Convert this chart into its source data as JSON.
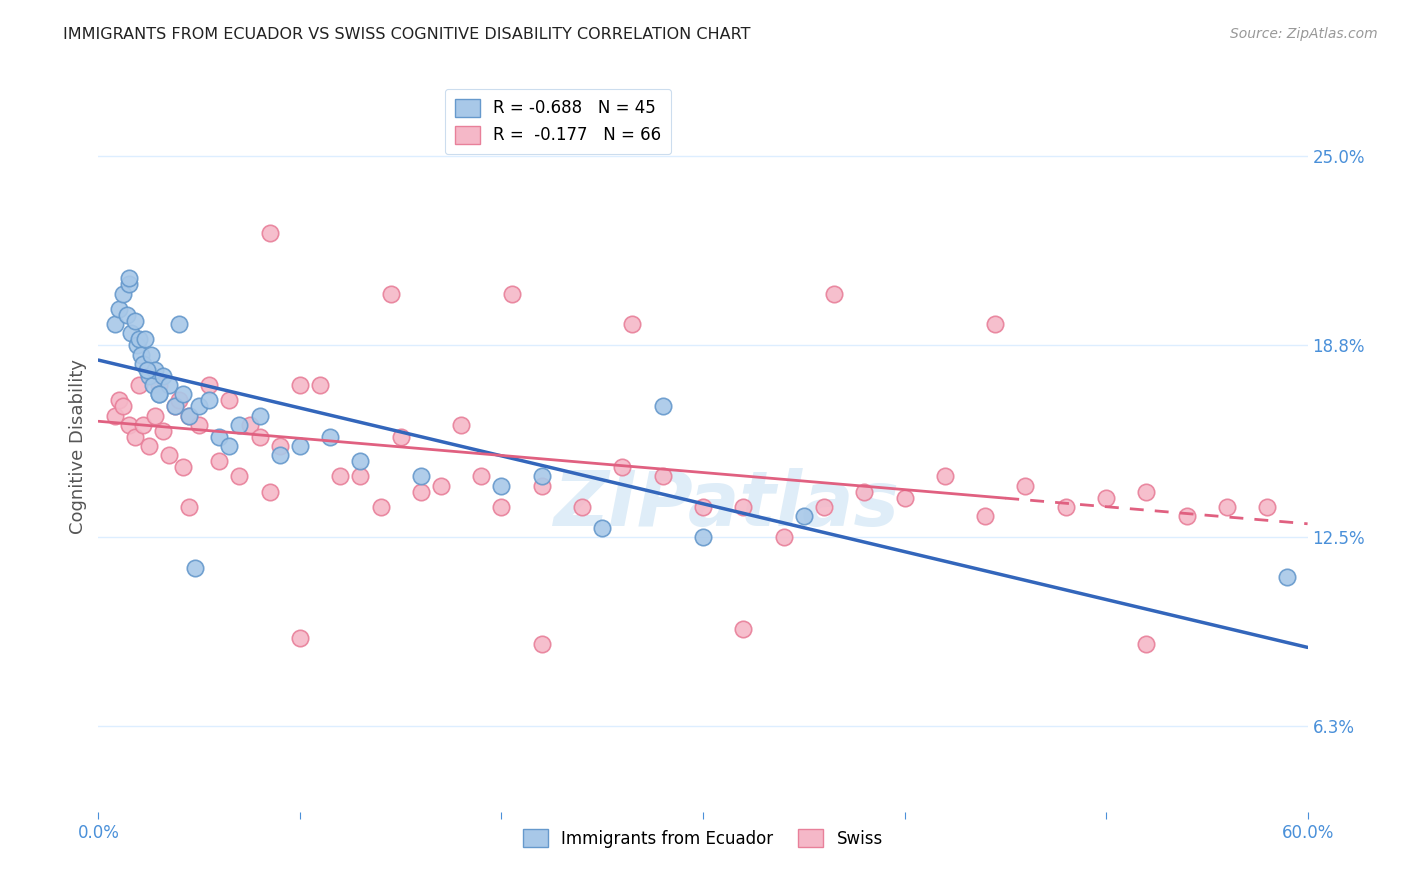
{
  "title": "IMMIGRANTS FROM ECUADOR VS SWISS COGNITIVE DISABILITY CORRELATION CHART",
  "source": "Source: ZipAtlas.com",
  "ylabel": "Cognitive Disability",
  "ytick_values": [
    6.3,
    12.5,
    18.8,
    25.0
  ],
  "xlim": [
    0.0,
    60.0
  ],
  "ylim": [
    3.5,
    27.5
  ],
  "series1_name": "Immigrants from Ecuador",
  "series2_name": "Swiss",
  "series1_color": "#a8c8e8",
  "series2_color": "#f5b8c8",
  "series1_edge": "#6699cc",
  "series2_edge": "#e8809a",
  "series1_line_color": "#3366bb",
  "series2_line_color": "#e06080",
  "background_color": "#ffffff",
  "grid_color": "#ddeeff",
  "title_color": "#222222",
  "axis_label_color": "#4a90d9",
  "watermark": "ZIPatlas",
  "series1_R": -0.688,
  "series1_N": 45,
  "series2_R": -0.177,
  "series2_N": 66,
  "series1_x": [
    0.8,
    1.0,
    1.2,
    1.4,
    1.5,
    1.6,
    1.8,
    1.9,
    2.0,
    2.1,
    2.2,
    2.3,
    2.5,
    2.6,
    2.7,
    2.8,
    3.0,
    3.2,
    3.5,
    3.8,
    4.0,
    4.2,
    4.5,
    5.0,
    5.5,
    6.0,
    6.5,
    7.0,
    8.0,
    9.0,
    10.0,
    11.5,
    13.0,
    16.0,
    20.0,
    22.0,
    25.0,
    28.0,
    30.0,
    35.0,
    59.0,
    3.0,
    1.5,
    2.4,
    4.8
  ],
  "series1_y": [
    19.5,
    20.0,
    20.5,
    19.8,
    20.8,
    19.2,
    19.6,
    18.8,
    19.0,
    18.5,
    18.2,
    19.0,
    17.8,
    18.5,
    17.5,
    18.0,
    17.2,
    17.8,
    17.5,
    16.8,
    19.5,
    17.2,
    16.5,
    16.8,
    17.0,
    15.8,
    15.5,
    16.2,
    16.5,
    15.2,
    15.5,
    15.8,
    15.0,
    14.5,
    14.2,
    14.5,
    12.8,
    16.8,
    12.5,
    13.2,
    11.2,
    17.2,
    21.0,
    18.0,
    11.5
  ],
  "series2_x": [
    0.8,
    1.0,
    1.2,
    1.5,
    1.8,
    2.0,
    2.2,
    2.5,
    2.8,
    3.0,
    3.2,
    3.5,
    3.8,
    4.0,
    4.2,
    4.5,
    5.0,
    5.5,
    6.0,
    6.5,
    7.0,
    7.5,
    8.0,
    8.5,
    9.0,
    10.0,
    11.0,
    12.0,
    13.0,
    14.0,
    15.0,
    16.0,
    17.0,
    18.0,
    19.0,
    20.0,
    22.0,
    24.0,
    26.0,
    28.0,
    30.0,
    32.0,
    34.0,
    36.0,
    38.0,
    40.0,
    42.0,
    44.0,
    46.0,
    48.0,
    50.0,
    52.0,
    54.0,
    56.0,
    58.0,
    8.5,
    14.5,
    20.5,
    26.5,
    36.5,
    44.5,
    10.0,
    22.0,
    32.0,
    52.0,
    4.5
  ],
  "series2_y": [
    16.5,
    17.0,
    16.8,
    16.2,
    15.8,
    17.5,
    16.2,
    15.5,
    16.5,
    17.5,
    16.0,
    15.2,
    16.8,
    17.0,
    14.8,
    16.5,
    16.2,
    17.5,
    15.0,
    17.0,
    14.5,
    16.2,
    15.8,
    14.0,
    15.5,
    17.5,
    17.5,
    14.5,
    14.5,
    13.5,
    15.8,
    14.0,
    14.2,
    16.2,
    14.5,
    13.5,
    14.2,
    13.5,
    14.8,
    14.5,
    13.5,
    13.5,
    12.5,
    13.5,
    14.0,
    13.8,
    14.5,
    13.2,
    14.2,
    13.5,
    13.8,
    14.0,
    13.2,
    13.5,
    13.5,
    22.5,
    20.5,
    20.5,
    19.5,
    20.5,
    19.5,
    9.2,
    9.0,
    9.5,
    9.0,
    13.5
  ]
}
